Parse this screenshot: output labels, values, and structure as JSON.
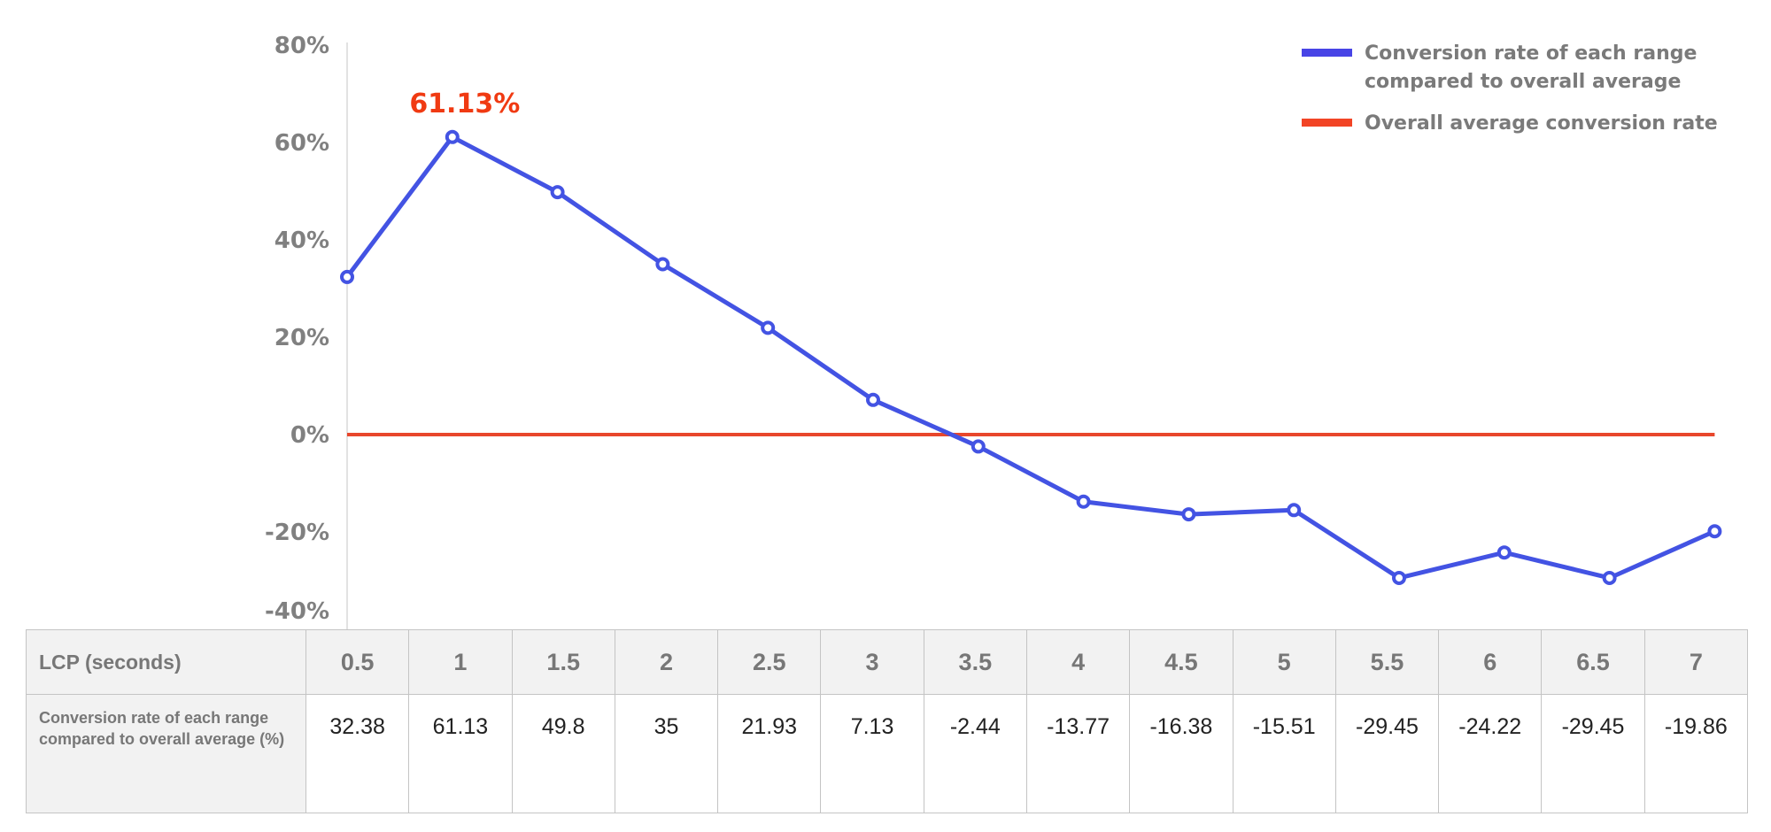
{
  "chart_data": {
    "type": "line",
    "x": [
      0.5,
      1,
      1.5,
      2,
      2.5,
      3,
      3.5,
      4,
      4.5,
      5,
      5.5,
      6,
      6.5,
      7
    ],
    "series": [
      {
        "name": "Conversion rate of each range compared to overall average",
        "values": [
          32.38,
          61.13,
          49.8,
          35,
          21.93,
          7.13,
          -2.44,
          -13.77,
          -16.38,
          -15.51,
          -29.45,
          -24.22,
          -29.45,
          -19.86
        ],
        "color": "#4353e3"
      },
      {
        "name": "Overall average conversion rate",
        "values": [
          0,
          0,
          0,
          0,
          0,
          0,
          0,
          0,
          0,
          0,
          0,
          0,
          0,
          0
        ],
        "color": "#e8472c"
      }
    ],
    "ylim": [
      -40,
      80
    ],
    "yticks": [
      "80%",
      "60%",
      "40%",
      "20%",
      "0%",
      "-20%",
      "-40%"
    ],
    "ytick_values": [
      80,
      60,
      40,
      20,
      0,
      -20,
      -40
    ],
    "legend_placement": "top-right",
    "annotation": {
      "text": "61.13%",
      "x": 1,
      "color": "#f03a12"
    },
    "grid": false
  },
  "table": {
    "header_label": "LCP (seconds)",
    "row_label": "Conversion rate of each range compared to overall average (%)",
    "columns": [
      "0.5",
      "1",
      "1.5",
      "2",
      "2.5",
      "3",
      "3.5",
      "4",
      "4.5",
      "5",
      "5.5",
      "6",
      "6.5",
      "7"
    ],
    "values": [
      "32.38",
      "61.13",
      "49.8",
      "35",
      "21.93",
      "7.13",
      "-2.44",
      "-13.77",
      "-16.38",
      "-15.51",
      "-29.45",
      "-24.22",
      "-29.45",
      "-19.86"
    ]
  }
}
